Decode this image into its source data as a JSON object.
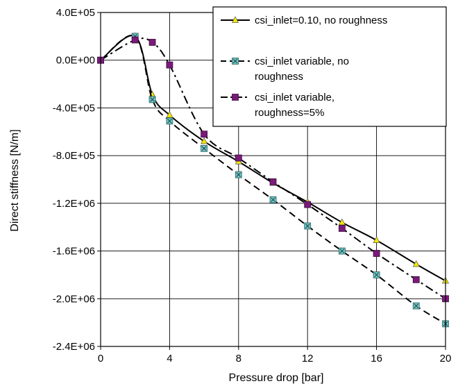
{
  "chart_data": {
    "type": "line",
    "xlabel": "Pressure drop [bar]",
    "ylabel": "Direct stiffness [N/m]",
    "xlim": [
      0,
      20
    ],
    "ylim": [
      -2400000,
      400000
    ],
    "x_ticks": [
      "0",
      "4",
      "8",
      "12",
      "16",
      "20"
    ],
    "y_ticks": [
      "4.0E+05",
      "0.0E+00",
      "-4.0E+05",
      "-8.0E+05",
      "-1.2E+06",
      "-1.6E+06",
      "-2.0E+06",
      "-2.4E+06"
    ],
    "grid": true,
    "legend_position": "top-right",
    "series": [
      {
        "name": "csi_inlet=0.10, no roughness",
        "line_style": "solid",
        "marker": "triangle",
        "marker_color": "#f2e600",
        "line_color": "#000000",
        "x": [
          0,
          2,
          3,
          4,
          6,
          8,
          10,
          12,
          14,
          16,
          18.3,
          20
        ],
        "y": [
          0,
          200000,
          -290000,
          -460000,
          -680000,
          -850000,
          -1030000,
          -1190000,
          -1360000,
          -1510000,
          -1710000,
          -1850000
        ]
      },
      {
        "name": "csi_inlet variable, no roughness",
        "line_style": "dashed",
        "marker": "square-x",
        "marker_color": "#70c8c8",
        "line_color": "#000000",
        "x": [
          0,
          2,
          3,
          4,
          6,
          8,
          10,
          12,
          14,
          16,
          18.3,
          20
        ],
        "y": [
          0,
          200000,
          -330000,
          -510000,
          -740000,
          -960000,
          -1170000,
          -1390000,
          -1600000,
          -1800000,
          -2060000,
          -2210000
        ]
      },
      {
        "name": "csi_inlet variable, roughness=5%",
        "line_style": "dash-dot",
        "marker": "square",
        "marker_color": "#7a1a7a",
        "line_color": "#000000",
        "x": [
          0,
          2,
          3,
          4,
          6,
          8,
          10,
          12,
          14,
          16,
          18.3,
          20
        ],
        "y": [
          0,
          170000,
          150000,
          -40000,
          -620000,
          -820000,
          -1020000,
          -1210000,
          -1410000,
          -1620000,
          -1840000,
          -2000000
        ]
      }
    ]
  }
}
